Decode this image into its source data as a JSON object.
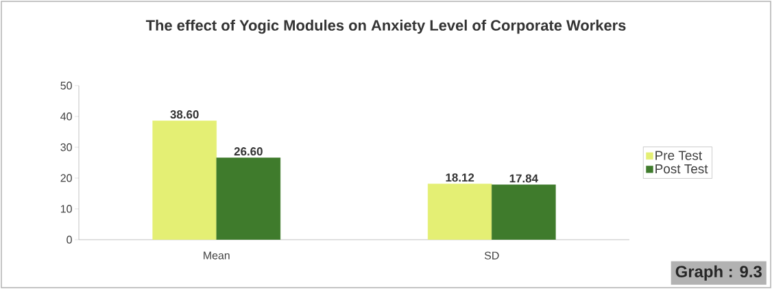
{
  "chart_data": {
    "type": "bar",
    "title": "The effect of Yogic Modules on Anxiety  Level of Corporate Workers",
    "categories": [
      "Mean",
      "SD"
    ],
    "series": [
      {
        "name": "Pre Test",
        "color": "#e4ef74",
        "values": [
          38.6,
          18.12
        ],
        "value_labels": [
          "38.60",
          "18.12"
        ]
      },
      {
        "name": "Post Test",
        "color": "#3f7b2c",
        "values": [
          26.6,
          17.84
        ],
        "value_labels": [
          "26.60",
          "17.84"
        ]
      }
    ],
    "ylim": [
      0,
      50
    ],
    "yticks": [
      0,
      10,
      20,
      30,
      40,
      50
    ],
    "legend": "right",
    "annotations": [
      "Graph : 9.3"
    ]
  }
}
